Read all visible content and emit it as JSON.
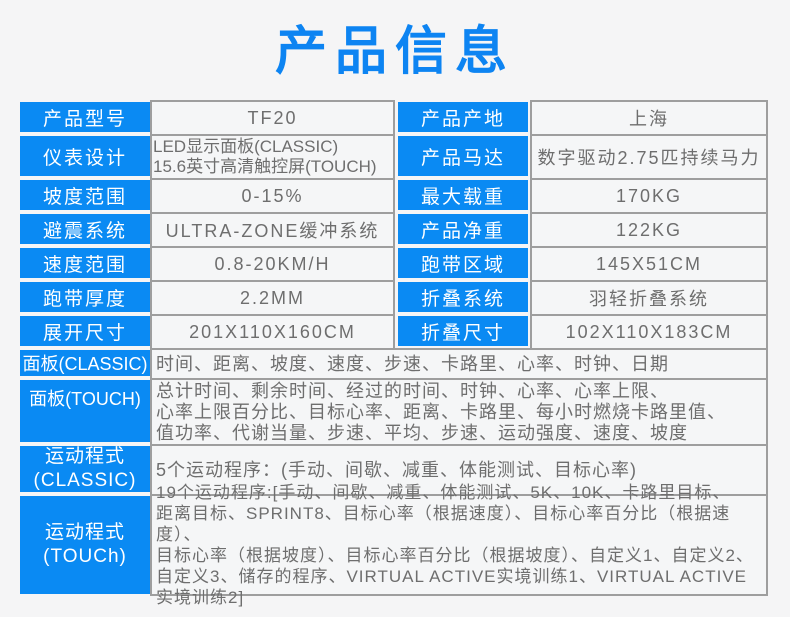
{
  "page": {
    "title": "产品信息",
    "colors": {
      "accent_blue": "#0a8af3",
      "title_blue": "#0d84f2",
      "border_gray": "#9e9e9e",
      "value_text_gray": "#6e6e6e",
      "background": "#f5f5f6",
      "label_text": "#ffffff"
    }
  },
  "spec_table": {
    "rows": [
      {
        "label": "产品型号",
        "value": "TF20",
        "label2": "产品产地",
        "value2": "上海"
      },
      {
        "label": "仪表设计",
        "value": "LED显示面板(CLASSIC)\n15.6英寸高清触控屏(TOUCH)",
        "label2": "产品马达",
        "value2": "数字驱动2.75匹持续马力"
      },
      {
        "label": "坡度范围",
        "value": "0-15%",
        "label2": "最大载重",
        "value2": "170KG"
      },
      {
        "label": "避震系统",
        "value": "ULTRA-ZONE缓冲系统",
        "label2": "产品净重",
        "value2": "122KG"
      },
      {
        "label": "速度范围",
        "value": "0.8-20KM/H",
        "label2": "跑带区域",
        "value2": "145X51CM"
      },
      {
        "label": "跑带厚度",
        "value": "2.2MM",
        "label2": "折叠系统",
        "value2": "羽轻折叠系统"
      },
      {
        "label": "展开尺寸",
        "value": "201X110X160CM",
        "label2": "折叠尺寸",
        "value2": "102X110X183CM"
      }
    ],
    "wide_rows": [
      {
        "label": "面板(CLASSIC)",
        "value": "时间、距离、坡度、速度、步速、卡路里、心率、时钟、日期"
      },
      {
        "label": "面板(TOUCH)",
        "value": "总计时间、剩余时间、经过的时间、时钟、心率、心率上限、\n心率上限百分比、目标心率、距离、卡路里、每小时燃烧卡路里值、\n值功率、代谢当量、步速、平均、步速、运动强度、速度、坡度"
      },
      {
        "label": "运动程式\n(CLASSIC)",
        "value": "5个运动程序：(手动、间歇、减重、体能测试、目标心率)"
      },
      {
        "label": "运动程式\n(TOUCh)",
        "value": "19个运动程序:[手动、间歇、减重、体能测试、5K、10K、卡路里目标、\n距离目标、SPRINT8、目标心率（根据速度）、目标心率百分比（根据速度）、\n目标心率（根据坡度）、目标心率百分比（根据坡度）、自定义1、自定义2、\n自定义3、储存的程序、VIRTUAL ACTIVE实境训练1、VIRTUAL ACTIVE实境训练2]"
      }
    ]
  }
}
